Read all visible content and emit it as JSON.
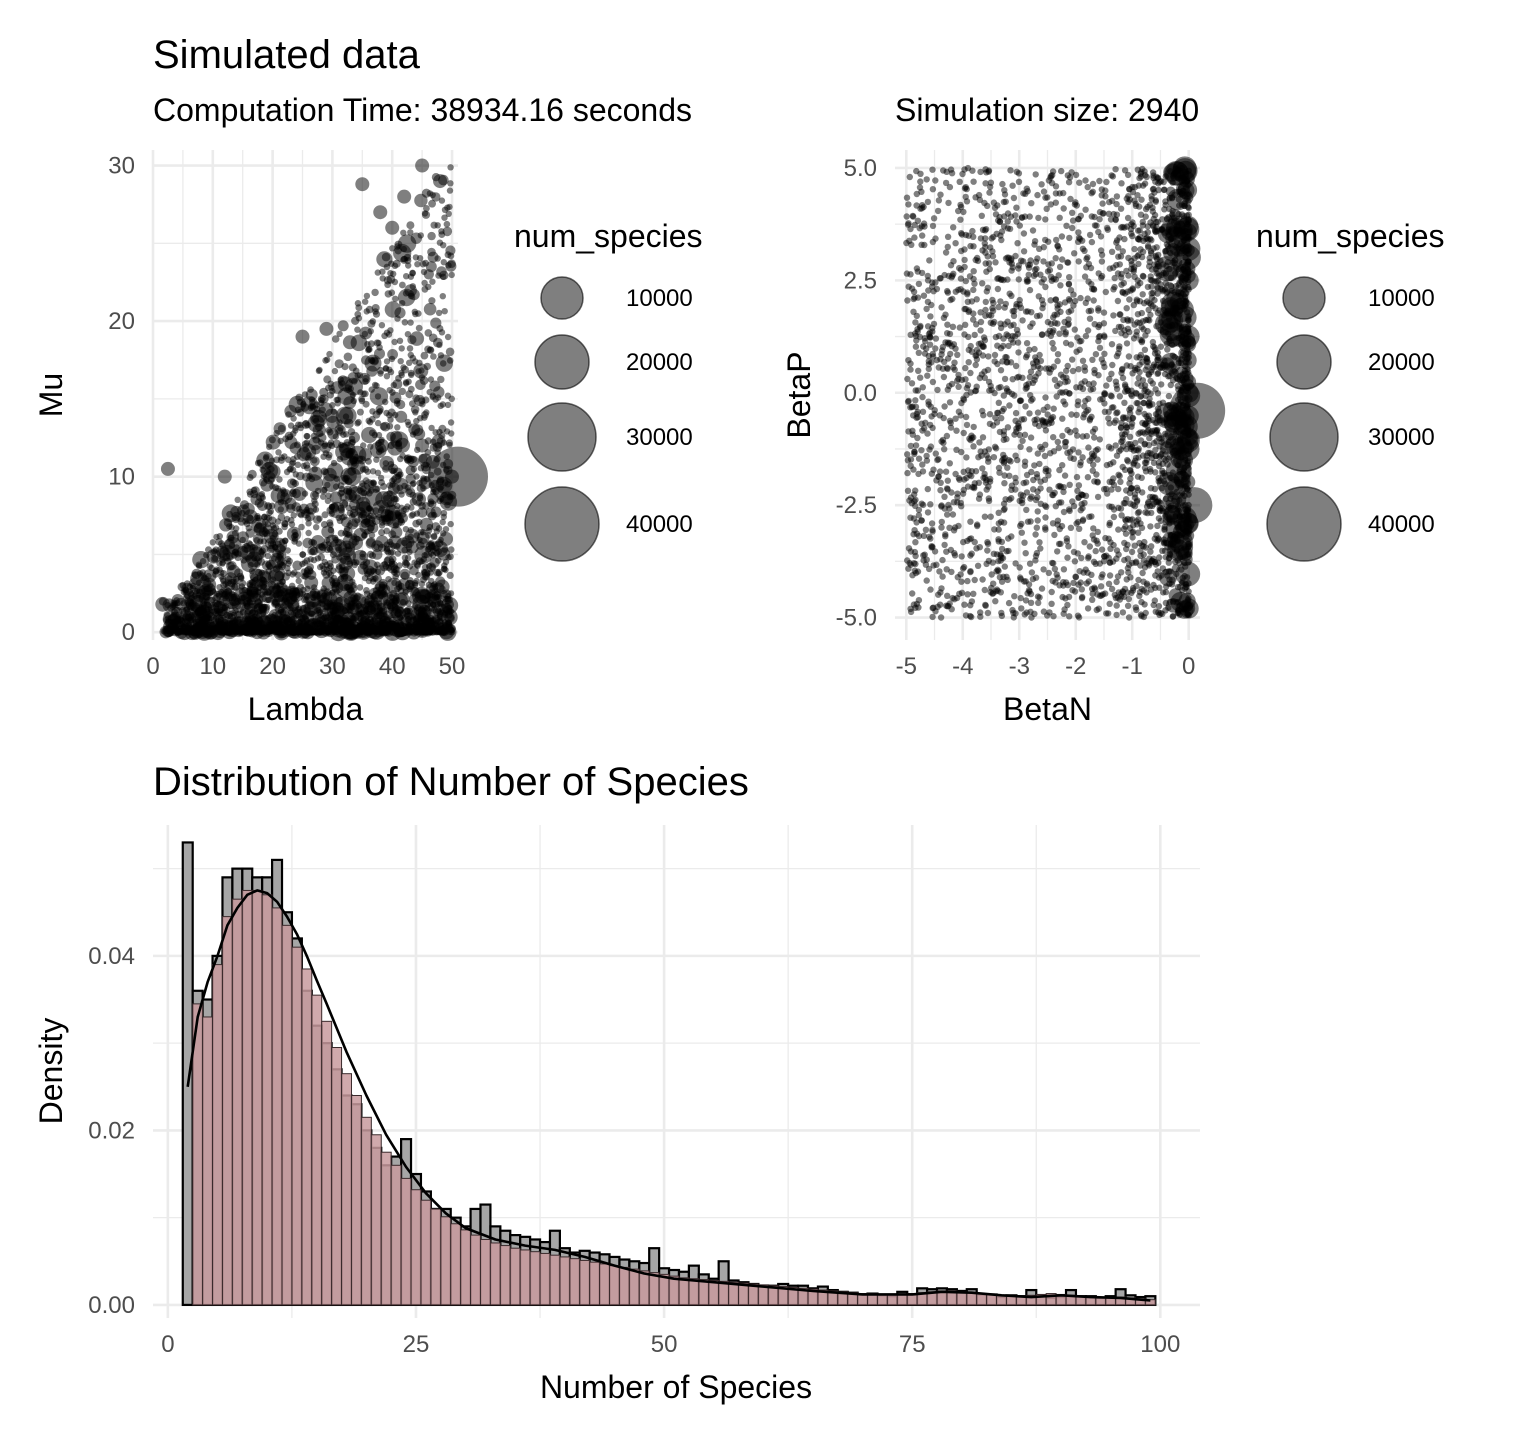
{
  "figure": {
    "title": "Simulated data",
    "subtitle_left": "Computation Time: 38934.16 seconds",
    "subtitle_right": "Simulation size: 2940"
  },
  "chart_data": [
    {
      "type": "scatter",
      "xlabel": "Lambda",
      "ylabel": "Mu",
      "xlim": [
        0,
        51
      ],
      "ylim": [
        -0.5,
        31
      ],
      "xticks": [
        0,
        10,
        20,
        30,
        40,
        50
      ],
      "yticks": [
        0,
        10,
        20,
        30
      ],
      "grid": true,
      "point_color": "#000000",
      "point_alpha": 0.5,
      "size_variable": "num_species",
      "n_points": 2940,
      "points_sample": [
        {
          "x": 2.5,
          "y": 10.5
        },
        {
          "x": 12,
          "y": 10
        },
        {
          "x": 25,
          "y": 19
        },
        {
          "x": 29,
          "y": 19.5
        },
        {
          "x": 35,
          "y": 28.8
        },
        {
          "x": 38,
          "y": 27
        },
        {
          "x": 40,
          "y": 26
        },
        {
          "x": 42,
          "y": 28
        },
        {
          "x": 45,
          "y": 30
        },
        {
          "x": 48,
          "y": 29
        },
        {
          "x": 45,
          "y": 12
        },
        {
          "x": 50,
          "y": 10
        },
        {
          "x": 49,
          "y": 6
        },
        {
          "x": 47,
          "y": 2
        },
        {
          "x": 46,
          "y": 0.5
        }
      ],
      "legend": {
        "title": "num_species",
        "position": "right",
        "entries": [
          "10000",
          "20000",
          "30000",
          "40000"
        ],
        "values": [
          10000,
          20000,
          30000,
          40000
        ]
      }
    },
    {
      "type": "scatter",
      "xlabel": "BetaN",
      "ylabel": "BetaP",
      "xlim": [
        -5.2,
        0.2
      ],
      "ylim": [
        -5.5,
        5.4
      ],
      "xticks": [
        -5,
        -4,
        -3,
        -2,
        -1,
        0
      ],
      "xtick_labels": [
        "-5",
        "-4",
        "-3",
        "-2",
        "-1",
        "0"
      ],
      "yticks": [
        -5,
        -2.5,
        0,
        2.5,
        5
      ],
      "ytick_labels": [
        "-5.0",
        "-2.5",
        "0.0",
        "2.5",
        "5.0"
      ],
      "grid": true,
      "point_color": "#000000",
      "point_alpha": 0.5,
      "size_variable": "num_species",
      "n_points": 2940,
      "points_sample": [
        {
          "x": 0,
          "y": 0
        },
        {
          "x": -0.1,
          "y": -1.5
        },
        {
          "x": 0,
          "y": -4.8
        },
        {
          "x": 0,
          "y": 2.5
        }
      ],
      "legend": {
        "title": "num_species",
        "position": "right",
        "entries": [
          "10000",
          "20000",
          "30000",
          "40000"
        ],
        "values": [
          10000,
          20000,
          30000,
          40000
        ]
      }
    },
    {
      "type": "bar",
      "title": "Distribution of Number of Species",
      "xlabel": "Number of Species",
      "ylabel": "Density",
      "xlim": [
        -1.5,
        104
      ],
      "ylim": [
        -0.0015,
        0.055
      ],
      "xticks": [
        0,
        25,
        50,
        75,
        100
      ],
      "yticks": [
        0,
        0.02,
        0.04
      ],
      "ytick_labels": [
        "0.00",
        "0.02",
        "0.04"
      ],
      "grid": true,
      "bin_width": 1,
      "bin_start": 1.5,
      "grey_fill": "#a6a6a6",
      "pink_fill": "#c89a9e",
      "grey_densities": [
        0.053,
        0.036,
        0.035,
        0.04,
        0.049,
        0.05,
        0.05,
        0.049,
        0.049,
        0.051,
        0.045,
        0.042,
        0.036,
        0.032,
        0.03,
        0.027,
        0.024,
        0.023,
        0.02,
        0.018,
        0.016,
        0.017,
        0.019,
        0.015,
        0.013,
        0.011,
        0.011,
        0.01,
        0.009,
        0.011,
        0.0115,
        0.009,
        0.0085,
        0.008,
        0.0078,
        0.0075,
        0.0072,
        0.0085,
        0.0065,
        0.006,
        0.0062,
        0.006,
        0.0058,
        0.0055,
        0.0052,
        0.005,
        0.0048,
        0.0065,
        0.0042,
        0.004,
        0.0038,
        0.0045,
        0.0035,
        0.003,
        0.005,
        0.0028,
        0.0026,
        0.0024,
        0.0022,
        0.0022,
        0.0024,
        0.0022,
        0.0022,
        0.0019,
        0.0021,
        0.0017,
        0.0015,
        0.0014,
        0.0012,
        0.0013,
        0.0011,
        0.001,
        0.0015,
        0.0012,
        0.0019,
        0.0018,
        0.0019,
        0.0018,
        0.0016,
        0.0018,
        0.0012,
        0.0012,
        0.0009,
        0.0011,
        0.001,
        0.0017,
        0.0011,
        0.0008,
        0.0009,
        0.0017,
        0.001,
        0.001,
        0.0008,
        0.001,
        0.0018,
        0.0011,
        0.0009,
        0.001
      ],
      "pink_densities": [
        0.0,
        0.0345,
        0.033,
        0.039,
        0.0445,
        0.0465,
        0.0475,
        0.0475,
        0.047,
        0.0455,
        0.0435,
        0.041,
        0.0385,
        0.0355,
        0.0325,
        0.0295,
        0.0265,
        0.024,
        0.0215,
        0.0195,
        0.0175,
        0.016,
        0.0145,
        0.0132,
        0.012,
        0.011,
        0.0101,
        0.0093,
        0.0086,
        0.008,
        0.0075,
        0.0071,
        0.0068,
        0.0065,
        0.0063,
        0.0061,
        0.0059,
        0.0057,
        0.0055,
        0.0053,
        0.0051,
        0.0049,
        0.0047,
        0.0045,
        0.0043,
        0.0041,
        0.0039,
        0.0037,
        0.0035,
        0.0033,
        0.0031,
        0.003,
        0.0029,
        0.0028,
        0.0027,
        0.0026,
        0.0025,
        0.0024,
        0.0023,
        0.0022,
        0.0021,
        0.002,
        0.0019,
        0.0018,
        0.0017,
        0.0016,
        0.0015,
        0.0014,
        0.0013,
        0.0013,
        0.0012,
        0.0012,
        0.0012,
        0.0013,
        0.0014,
        0.0015,
        0.0016,
        0.0016,
        0.0015,
        0.0014,
        0.0013,
        0.0012,
        0.0011,
        0.001,
        0.001,
        0.0011,
        0.0012,
        0.0013,
        0.0012,
        0.0011,
        0.001,
        0.0009,
        0.0009,
        0.0009,
        0.0009,
        0.0008,
        0.0007,
        0.0006
      ],
      "density_curve": {
        "x": [
          2,
          3,
          4,
          5,
          6,
          7,
          8,
          9,
          10,
          11,
          12,
          13,
          14,
          15,
          16,
          18,
          20,
          22,
          24,
          26,
          28,
          30,
          33,
          36,
          39,
          42,
          45,
          48,
          51,
          55,
          60,
          65,
          70,
          75,
          78,
          81,
          84,
          87,
          90,
          93,
          96,
          99
        ],
        "y": [
          0.025,
          0.033,
          0.037,
          0.04,
          0.0435,
          0.0455,
          0.047,
          0.0475,
          0.0472,
          0.0462,
          0.0445,
          0.0425,
          0.04,
          0.0372,
          0.0345,
          0.029,
          0.024,
          0.0195,
          0.0158,
          0.0128,
          0.0105,
          0.0088,
          0.0075,
          0.0068,
          0.0063,
          0.0055,
          0.0045,
          0.0036,
          0.003,
          0.0026,
          0.0021,
          0.0016,
          0.0012,
          0.0012,
          0.0015,
          0.0014,
          0.0011,
          0.0009,
          0.0011,
          0.0009,
          0.0008,
          0.0005
        ]
      }
    }
  ]
}
